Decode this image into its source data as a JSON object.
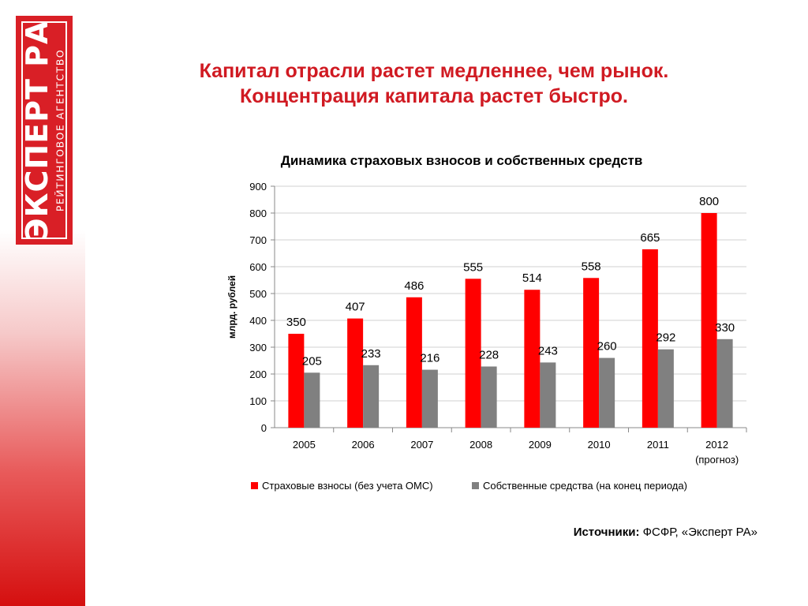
{
  "logo": {
    "main": "ЭКСПЕРТ РА",
    "sub": "РЕЙТИНГОВОЕ АГЕНТСТВО"
  },
  "title": {
    "line1": "Капитал отрасли растет медленнее, чем рынок.",
    "line2": "Концентрация капитала растет быстро."
  },
  "source": {
    "label": "Источники",
    "colon": ":",
    "text": " ФСФР, «Эксперт РА»"
  },
  "colors": {
    "accent": "#d01a22",
    "series_red": "#ff0000",
    "series_gray": "#808080"
  },
  "chart_data": {
    "type": "bar",
    "title": "Динамика страховых взносов и собственных средств",
    "ylabel": "млрд. рублей",
    "xlabel": "",
    "ylim": [
      0,
      900
    ],
    "yticks": [
      0,
      100,
      200,
      300,
      400,
      500,
      600,
      700,
      800,
      900
    ],
    "grid": true,
    "legend": "bottom",
    "categories": [
      "2005",
      "2006",
      "2007",
      "2008",
      "2009",
      "2010",
      "2011",
      "2012"
    ],
    "category_sublabels": [
      "",
      "",
      "",
      "",
      "",
      "",
      "",
      "(прогноз)"
    ],
    "series": [
      {
        "name": "Страховые взносы (без учета ОМС)",
        "color": "#ff0000",
        "values": [
          350,
          407,
          486,
          555,
          514,
          558,
          665,
          800
        ]
      },
      {
        "name": "Собственные средства (на конец периода)",
        "color": "#808080",
        "values": [
          205,
          233,
          216,
          228,
          243,
          260,
          292,
          330
        ]
      }
    ]
  }
}
